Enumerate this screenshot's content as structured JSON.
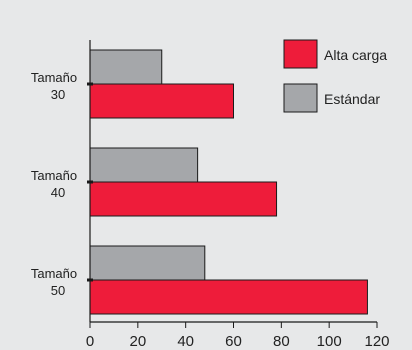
{
  "chart_data": {
    "type": "bar",
    "orientation": "horizontal",
    "categories": [
      {
        "line1": "Tamaño",
        "line2": "30"
      },
      {
        "line1": "Tamaño",
        "line2": "40"
      },
      {
        "line1": "Tamaño",
        "line2": "50"
      }
    ],
    "series": [
      {
        "name": "Estándar",
        "color": "#a5a7aa",
        "values": [
          30,
          45,
          48
        ]
      },
      {
        "name": "Alta carga",
        "color": "#ee1c3a",
        "values": [
          60,
          78,
          116
        ]
      }
    ],
    "legend_order": [
      1,
      0
    ],
    "xlim": [
      0,
      120
    ],
    "xticks": [
      "0",
      "20",
      "40",
      "60",
      "80",
      "100",
      "120"
    ],
    "grid": false,
    "legend_position": "top-right",
    "background_color": "#e7e8e9",
    "title": "",
    "xlabel": "",
    "ylabel": ""
  }
}
